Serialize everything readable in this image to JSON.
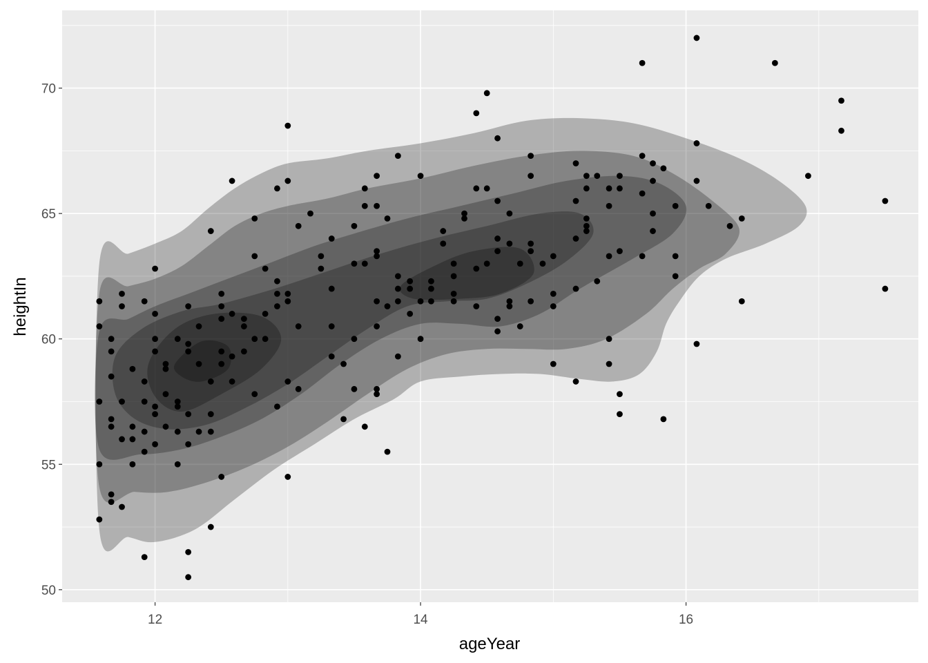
{
  "chart_data": {
    "type": "scatter",
    "xlabel": "ageYear",
    "ylabel": "heightIn",
    "xlim": [
      11.3,
      17.75
    ],
    "ylim": [
      49.5,
      73.1
    ],
    "x_ticks": [
      12,
      14,
      16
    ],
    "x_tick_labels": [
      "12",
      "14",
      "16"
    ],
    "y_ticks": [
      50,
      55,
      60,
      65,
      70
    ],
    "y_tick_labels": [
      "50",
      "55",
      "60",
      "65",
      "70"
    ],
    "grid": true,
    "panel_color": "#ebebeb",
    "grid_color": "#ffffff",
    "point_color": "#000000",
    "density_fill": "#000000",
    "density_band_alpha": 0.25,
    "points": [
      [
        11.58,
        61.5
      ],
      [
        11.58,
        60.5
      ],
      [
        11.58,
        57.5
      ],
      [
        11.58,
        55.0
      ],
      [
        11.58,
        52.8
      ],
      [
        11.67,
        60.0
      ],
      [
        11.67,
        59.5
      ],
      [
        11.67,
        58.5
      ],
      [
        11.67,
        56.8
      ],
      [
        11.67,
        56.5
      ],
      [
        11.67,
        53.8
      ],
      [
        11.67,
        53.5
      ],
      [
        11.75,
        61.8
      ],
      [
        11.75,
        61.3
      ],
      [
        11.75,
        57.5
      ],
      [
        11.75,
        56.0
      ],
      [
        11.75,
        53.3
      ],
      [
        11.83,
        58.8
      ],
      [
        11.83,
        56.5
      ],
      [
        11.83,
        56.0
      ],
      [
        11.83,
        55.0
      ],
      [
        11.92,
        61.5
      ],
      [
        11.92,
        58.3
      ],
      [
        11.92,
        57.5
      ],
      [
        11.92,
        56.3
      ],
      [
        11.92,
        55.5
      ],
      [
        11.92,
        51.3
      ],
      [
        12.0,
        62.8
      ],
      [
        12.0,
        61.0
      ],
      [
        12.0,
        60.0
      ],
      [
        12.0,
        59.5
      ],
      [
        12.0,
        57.3
      ],
      [
        12.0,
        57.0
      ],
      [
        12.0,
        55.8
      ],
      [
        12.08,
        59.0
      ],
      [
        12.08,
        58.8
      ],
      [
        12.08,
        57.8
      ],
      [
        12.08,
        56.5
      ],
      [
        12.17,
        60.0
      ],
      [
        12.17,
        57.5
      ],
      [
        12.17,
        57.3
      ],
      [
        12.17,
        56.3
      ],
      [
        12.17,
        55.0
      ],
      [
        12.25,
        61.3
      ],
      [
        12.25,
        59.8
      ],
      [
        12.25,
        59.5
      ],
      [
        12.25,
        57.0
      ],
      [
        12.25,
        55.8
      ],
      [
        12.25,
        51.5
      ],
      [
        12.25,
        50.5
      ],
      [
        12.33,
        60.5
      ],
      [
        12.33,
        59.0
      ],
      [
        12.33,
        56.3
      ],
      [
        12.42,
        64.3
      ],
      [
        12.42,
        58.3
      ],
      [
        12.42,
        57.0
      ],
      [
        12.42,
        56.3
      ],
      [
        12.42,
        52.5
      ],
      [
        12.5,
        61.8
      ],
      [
        12.5,
        61.3
      ],
      [
        12.5,
        60.8
      ],
      [
        12.5,
        59.5
      ],
      [
        12.5,
        59.0
      ],
      [
        12.5,
        54.5
      ],
      [
        12.58,
        66.3
      ],
      [
        12.58,
        61.0
      ],
      [
        12.58,
        59.3
      ],
      [
        12.58,
        58.3
      ],
      [
        12.67,
        60.8
      ],
      [
        12.67,
        60.5
      ],
      [
        12.67,
        59.5
      ],
      [
        12.75,
        64.8
      ],
      [
        12.75,
        63.3
      ],
      [
        12.75,
        60.0
      ],
      [
        12.75,
        57.8
      ],
      [
        12.83,
        62.8
      ],
      [
        12.83,
        61.0
      ],
      [
        12.83,
        60.0
      ],
      [
        12.92,
        66.0
      ],
      [
        12.92,
        62.3
      ],
      [
        12.92,
        61.8
      ],
      [
        12.92,
        61.3
      ],
      [
        12.92,
        57.3
      ],
      [
        13.0,
        68.5
      ],
      [
        13.0,
        66.3
      ],
      [
        13.0,
        61.8
      ],
      [
        13.0,
        61.5
      ],
      [
        13.0,
        58.3
      ],
      [
        13.0,
        54.5
      ],
      [
        13.08,
        64.5
      ],
      [
        13.08,
        60.5
      ],
      [
        13.08,
        58.0
      ],
      [
        13.17,
        65.0
      ],
      [
        13.25,
        63.3
      ],
      [
        13.25,
        62.8
      ],
      [
        13.33,
        64.0
      ],
      [
        13.33,
        62.0
      ],
      [
        13.33,
        60.5
      ],
      [
        13.33,
        59.3
      ],
      [
        13.42,
        59.0
      ],
      [
        13.42,
        56.8
      ],
      [
        13.5,
        64.5
      ],
      [
        13.5,
        63.0
      ],
      [
        13.5,
        60.0
      ],
      [
        13.5,
        58.0
      ],
      [
        13.58,
        66.0
      ],
      [
        13.58,
        65.3
      ],
      [
        13.58,
        63.0
      ],
      [
        13.58,
        56.5
      ],
      [
        13.67,
        66.5
      ],
      [
        13.67,
        65.3
      ],
      [
        13.67,
        63.5
      ],
      [
        13.67,
        63.3
      ],
      [
        13.67,
        61.5
      ],
      [
        13.67,
        60.5
      ],
      [
        13.67,
        58.0
      ],
      [
        13.67,
        57.8
      ],
      [
        13.75,
        64.8
      ],
      [
        13.75,
        61.3
      ],
      [
        13.75,
        55.5
      ],
      [
        13.83,
        67.3
      ],
      [
        13.83,
        62.5
      ],
      [
        13.83,
        62.0
      ],
      [
        13.83,
        61.5
      ],
      [
        13.83,
        59.3
      ],
      [
        13.92,
        62.3
      ],
      [
        13.92,
        62.0
      ],
      [
        13.92,
        61.0
      ],
      [
        14.0,
        66.5
      ],
      [
        14.0,
        61.5
      ],
      [
        14.0,
        60.0
      ],
      [
        14.08,
        62.3
      ],
      [
        14.08,
        62.0
      ],
      [
        14.08,
        61.5
      ],
      [
        14.17,
        64.3
      ],
      [
        14.17,
        63.8
      ],
      [
        14.25,
        63.0
      ],
      [
        14.25,
        62.5
      ],
      [
        14.25,
        61.8
      ],
      [
        14.25,
        61.5
      ],
      [
        14.33,
        65.0
      ],
      [
        14.33,
        64.8
      ],
      [
        14.42,
        69.0
      ],
      [
        14.42,
        66.0
      ],
      [
        14.42,
        62.8
      ],
      [
        14.42,
        61.3
      ],
      [
        14.5,
        69.8
      ],
      [
        14.5,
        66.0
      ],
      [
        14.5,
        63.0
      ],
      [
        14.58,
        68.0
      ],
      [
        14.58,
        65.5
      ],
      [
        14.58,
        64.0
      ],
      [
        14.58,
        63.5
      ],
      [
        14.58,
        60.8
      ],
      [
        14.58,
        60.3
      ],
      [
        14.67,
        65.0
      ],
      [
        14.67,
        63.8
      ],
      [
        14.67,
        61.5
      ],
      [
        14.67,
        61.3
      ],
      [
        14.75,
        63.0
      ],
      [
        14.75,
        60.5
      ],
      [
        14.83,
        67.3
      ],
      [
        14.83,
        66.5
      ],
      [
        14.83,
        63.8
      ],
      [
        14.83,
        63.5
      ],
      [
        14.83,
        61.5
      ],
      [
        14.92,
        63.0
      ],
      [
        15.0,
        63.3
      ],
      [
        15.0,
        61.8
      ],
      [
        15.0,
        61.3
      ],
      [
        15.0,
        59.0
      ],
      [
        15.17,
        67.0
      ],
      [
        15.17,
        65.5
      ],
      [
        15.17,
        64.0
      ],
      [
        15.17,
        62.0
      ],
      [
        15.17,
        58.3
      ],
      [
        15.25,
        66.5
      ],
      [
        15.25,
        66.0
      ],
      [
        15.25,
        64.8
      ],
      [
        15.25,
        64.5
      ],
      [
        15.25,
        64.3
      ],
      [
        15.33,
        66.5
      ],
      [
        15.33,
        62.3
      ],
      [
        15.42,
        66.0
      ],
      [
        15.42,
        65.3
      ],
      [
        15.42,
        63.3
      ],
      [
        15.42,
        60.0
      ],
      [
        15.42,
        59.0
      ],
      [
        15.5,
        66.5
      ],
      [
        15.5,
        66.0
      ],
      [
        15.5,
        63.5
      ],
      [
        15.5,
        57.8
      ],
      [
        15.5,
        57.0
      ],
      [
        15.67,
        71.0
      ],
      [
        15.67,
        67.3
      ],
      [
        15.67,
        65.8
      ],
      [
        15.67,
        63.3
      ],
      [
        15.75,
        67.0
      ],
      [
        15.75,
        66.3
      ],
      [
        15.75,
        65.0
      ],
      [
        15.75,
        64.3
      ],
      [
        15.83,
        66.8
      ],
      [
        15.83,
        56.8
      ],
      [
        15.92,
        65.3
      ],
      [
        15.92,
        63.3
      ],
      [
        15.92,
        62.5
      ],
      [
        16.08,
        72.0
      ],
      [
        16.08,
        67.8
      ],
      [
        16.08,
        66.3
      ],
      [
        16.08,
        59.8
      ],
      [
        16.17,
        65.3
      ],
      [
        16.33,
        64.5
      ],
      [
        16.42,
        64.8
      ],
      [
        16.42,
        61.5
      ],
      [
        16.67,
        71.0
      ],
      [
        16.92,
        66.5
      ],
      [
        17.17,
        69.5
      ],
      [
        17.17,
        68.3
      ],
      [
        17.5,
        65.5
      ],
      [
        17.5,
        62.0
      ]
    ],
    "density_bands": [
      [
        [
          11.58,
          63.0
        ],
        [
          11.8,
          63.4
        ],
        [
          12.0,
          63.8
        ],
        [
          12.2,
          64.3
        ],
        [
          12.4,
          65.2
        ],
        [
          12.6,
          66.0
        ],
        [
          12.8,
          66.6
        ],
        [
          13.0,
          67.0
        ],
        [
          13.3,
          67.2
        ],
        [
          13.6,
          67.5
        ],
        [
          14.0,
          67.8
        ],
        [
          14.4,
          68.2
        ],
        [
          14.8,
          68.7
        ],
        [
          15.2,
          68.8
        ],
        [
          15.6,
          68.6
        ],
        [
          16.0,
          68.0
        ],
        [
          16.4,
          67.2
        ],
        [
          16.7,
          66.3
        ],
        [
          16.9,
          65.3
        ],
        [
          16.85,
          64.5
        ],
        [
          16.6,
          63.8
        ],
        [
          16.3,
          63.2
        ],
        [
          16.1,
          62.5
        ],
        [
          15.95,
          61.5
        ],
        [
          15.85,
          60.6
        ],
        [
          15.78,
          59.5
        ],
        [
          15.65,
          58.6
        ],
        [
          15.45,
          58.3
        ],
        [
          15.2,
          58.4
        ],
        [
          14.9,
          58.6
        ],
        [
          14.6,
          58.6
        ],
        [
          14.3,
          58.5
        ],
        [
          14.0,
          58.3
        ],
        [
          13.8,
          57.6
        ],
        [
          13.5,
          56.8
        ],
        [
          13.2,
          55.8
        ],
        [
          12.9,
          54.8
        ],
        [
          12.6,
          53.6
        ],
        [
          12.3,
          52.4
        ],
        [
          12.0,
          51.9
        ],
        [
          11.8,
          52.1
        ],
        [
          11.58,
          52.4
        ]
      ],
      [
        [
          11.58,
          61.8
        ],
        [
          11.8,
          62.1
        ],
        [
          12.0,
          62.4
        ],
        [
          12.2,
          62.9
        ],
        [
          12.4,
          63.7
        ],
        [
          12.6,
          64.5
        ],
        [
          12.8,
          65.0
        ],
        [
          13.0,
          65.3
        ],
        [
          13.3,
          65.6
        ],
        [
          13.6,
          66.0
        ],
        [
          14.0,
          66.4
        ],
        [
          14.4,
          66.9
        ],
        [
          14.8,
          67.3
        ],
        [
          15.2,
          67.5
        ],
        [
          15.6,
          67.3
        ],
        [
          15.9,
          66.6
        ],
        [
          16.2,
          65.5
        ],
        [
          16.4,
          64.4
        ],
        [
          16.3,
          63.4
        ],
        [
          16.1,
          62.8
        ],
        [
          15.9,
          62.0
        ],
        [
          15.7,
          61.0
        ],
        [
          15.4,
          60.0
        ],
        [
          15.1,
          59.6
        ],
        [
          14.8,
          59.6
        ],
        [
          14.5,
          59.6
        ],
        [
          14.2,
          59.4
        ],
        [
          13.9,
          58.8
        ],
        [
          13.6,
          57.8
        ],
        [
          13.3,
          56.7
        ],
        [
          13.0,
          55.7
        ],
        [
          12.7,
          54.9
        ],
        [
          12.4,
          54.3
        ],
        [
          12.1,
          53.9
        ],
        [
          11.85,
          53.9
        ],
        [
          11.58,
          54.1
        ]
      ],
      [
        [
          11.58,
          60.3
        ],
        [
          11.8,
          60.8
        ],
        [
          12.0,
          61.3
        ],
        [
          12.3,
          61.9
        ],
        [
          12.6,
          62.5
        ],
        [
          12.9,
          63.1
        ],
        [
          13.2,
          63.7
        ],
        [
          13.5,
          64.2
        ],
        [
          13.9,
          64.8
        ],
        [
          14.3,
          65.3
        ],
        [
          14.7,
          65.8
        ],
        [
          15.1,
          66.3
        ],
        [
          15.5,
          66.5
        ],
        [
          15.8,
          66.2
        ],
        [
          16.0,
          65.3
        ],
        [
          15.9,
          64.2
        ],
        [
          15.6,
          63.2
        ],
        [
          15.2,
          62.0
        ],
        [
          14.9,
          61.0
        ],
        [
          14.6,
          60.5
        ],
        [
          14.3,
          60.6
        ],
        [
          14.0,
          60.6
        ],
        [
          13.7,
          60.0
        ],
        [
          13.4,
          59.0
        ],
        [
          13.1,
          57.8
        ],
        [
          12.8,
          56.8
        ],
        [
          12.5,
          56.1
        ],
        [
          12.2,
          55.6
        ],
        [
          11.9,
          55.4
        ],
        [
          11.58,
          55.6
        ]
      ],
      [
        [
          11.7,
          59.3
        ],
        [
          11.9,
          60.4
        ],
        [
          12.2,
          61.1
        ],
        [
          12.5,
          61.4
        ],
        [
          12.9,
          62.0
        ],
        [
          13.3,
          62.7
        ],
        [
          13.7,
          63.4
        ],
        [
          14.1,
          64.0
        ],
        [
          14.5,
          64.5
        ],
        [
          14.9,
          65.0
        ],
        [
          15.2,
          65.0
        ],
        [
          15.3,
          64.2
        ],
        [
          15.1,
          63.1
        ],
        [
          14.8,
          62.2
        ],
        [
          14.5,
          61.6
        ],
        [
          14.2,
          61.5
        ],
        [
          13.9,
          61.3
        ],
        [
          13.6,
          60.4
        ],
        [
          13.3,
          59.3
        ],
        [
          13.0,
          58.2
        ],
        [
          12.7,
          57.3
        ],
        [
          12.4,
          56.6
        ],
        [
          12.1,
          56.4
        ],
        [
          11.85,
          56.8
        ],
        [
          11.7,
          57.8
        ]
      ],
      [
        [
          11.95,
          59.0
        ],
        [
          12.15,
          60.4
        ],
        [
          12.45,
          61.0
        ],
        [
          12.8,
          60.9
        ],
        [
          12.95,
          60.0
        ],
        [
          12.8,
          58.8
        ],
        [
          12.5,
          57.8
        ],
        [
          12.2,
          57.1
        ],
        [
          12.0,
          57.7
        ]
      ],
      [
        [
          12.15,
          59.0
        ],
        [
          12.35,
          59.9
        ],
        [
          12.55,
          59.7
        ],
        [
          12.55,
          58.8
        ],
        [
          12.35,
          58.3
        ],
        [
          12.2,
          58.5
        ]
      ],
      [
        [
          13.85,
          62.1
        ],
        [
          14.1,
          62.9
        ],
        [
          14.4,
          63.5
        ],
        [
          14.75,
          63.6
        ],
        [
          14.85,
          62.6
        ],
        [
          14.6,
          61.8
        ],
        [
          14.3,
          61.6
        ],
        [
          13.95,
          61.6
        ]
      ]
    ]
  }
}
